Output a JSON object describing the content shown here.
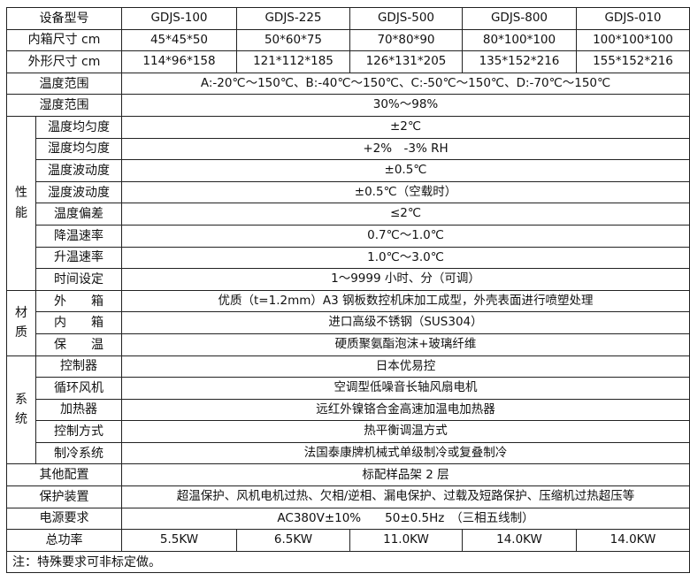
{
  "header": {
    "label": "设备型号",
    "models": [
      "GDJS-100",
      "GDJS-225",
      "GDJS-500",
      "GDJS-800",
      "GDJS-010"
    ]
  },
  "inner_size": {
    "label": "内箱尺寸 cm",
    "values": [
      "45*45*50",
      "50*60*75",
      "70*80*90",
      "80*100*100",
      "100*100*100"
    ]
  },
  "outer_size": {
    "label": "外形尺寸 cm",
    "values": [
      "114*96*158",
      "121*112*185",
      "126*131*205",
      "135*152*216",
      "155*152*216"
    ]
  },
  "temp_range": {
    "label": "温度范围",
    "value": "A:-20℃～150℃、B:-40℃～150℃、C:-50℃～150℃、D:-70℃～150℃"
  },
  "humidity_range": {
    "label": "湿度范围",
    "value": "30%～98%"
  },
  "performance": {
    "group": "性\n能",
    "rows": [
      {
        "label": "温度均匀度",
        "value": "±2℃"
      },
      {
        "label": "湿度均匀度",
        "value": "+2%　-3% RH"
      },
      {
        "label": "温度波动度",
        "value": "±0.5℃"
      },
      {
        "label": "湿度波动度",
        "value": "±0.5℃（空载时）"
      },
      {
        "label": "温度偏差",
        "value": "≤2℃"
      },
      {
        "label": "降温速率",
        "value": "0.7℃～1.0℃"
      },
      {
        "label": "升温速率",
        "value": "1.0℃～3.0℃"
      },
      {
        "label": "时间设定",
        "value": "1～9999 小时、分（可调）"
      }
    ]
  },
  "material": {
    "group": "材\n质",
    "rows": [
      {
        "label": "外　　箱",
        "value": "优质（t=1.2mm）A3 钢板数控机床加工成型，外壳表面进行喷塑处理"
      },
      {
        "label": "内　　箱",
        "value": "进口高级不锈钢（SUS304）"
      },
      {
        "label": "保　　温",
        "value": "硬质聚氨酯泡沫+玻璃纤维"
      }
    ]
  },
  "system": {
    "group": "系\n统",
    "rows": [
      {
        "label": "控制器",
        "value": "日本优易控"
      },
      {
        "label": "循环风机",
        "value": "空调型低噪音长轴风扇电机"
      },
      {
        "label": "加热器",
        "value": "远红外镍铬合金高速加温电加热器"
      },
      {
        "label": "控制方式",
        "value": "热平衡调温方式"
      },
      {
        "label": "制冷系统",
        "value": "法国泰康牌机械式单级制冷或复叠制冷"
      }
    ]
  },
  "other_config": {
    "label": "其他配置",
    "value": "标配样品架 2 层"
  },
  "protection": {
    "label": "保护装置",
    "value": "超温保护、风机电机过热、欠相/逆相、漏电保护、过载及短路保护、压缩机过热超压等"
  },
  "power_supply": {
    "label": "电源要求",
    "value": "AC380V±10%　　50±0.5Hz　（三相五线制）"
  },
  "total_power": {
    "label": "总功率",
    "values": [
      "5.5KW",
      "6.5KW",
      "11.0KW",
      "14.0KW",
      "14.0KW"
    ]
  },
  "note": "注：特殊要求可非标定做。"
}
